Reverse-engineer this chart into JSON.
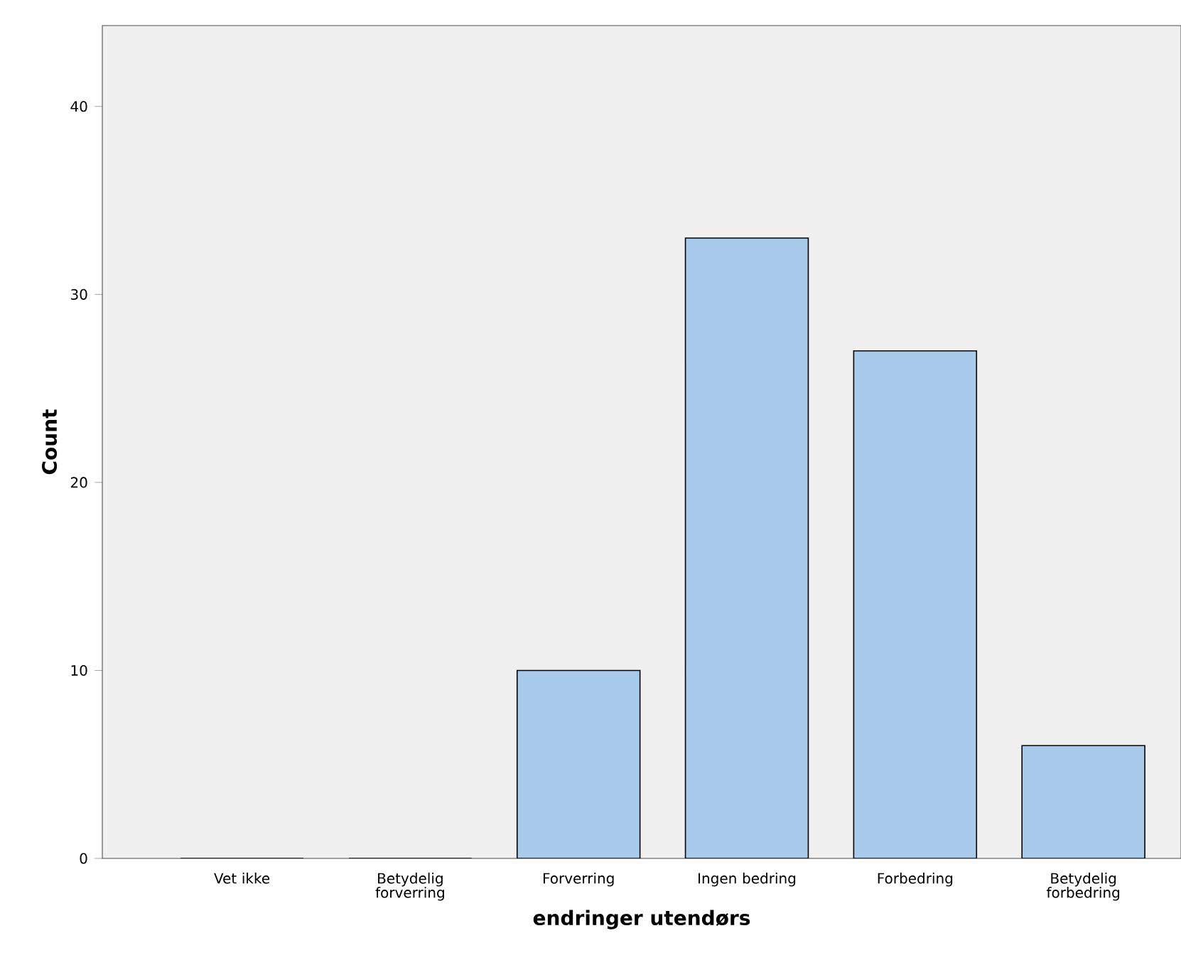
{
  "chart_data": {
    "type": "bar",
    "xlabel": "endringer utendørs",
    "ylabel": "Count",
    "categories": [
      "Vet ikke",
      "Betydelig forverring",
      "Forverring",
      "Ingen bedring",
      "Forbedring",
      "Betydelig forbedring"
    ],
    "values": [
      0,
      0,
      10,
      33,
      27,
      6
    ],
    "color": "#a9cbeb",
    "ylim": [
      0,
      44.3
    ],
    "yticks": [
      0,
      10,
      20,
      30,
      40
    ],
    "grid": false
  }
}
